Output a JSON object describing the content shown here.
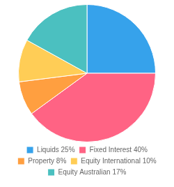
{
  "chart_data": {
    "type": "pie",
    "categories": [
      "Liquids 25%",
      "Fixed Interest 40%",
      "Property 8%",
      "Equity International 10%",
      "Equity Australian 17%"
    ],
    "values": [
      25,
      40,
      8,
      10,
      17
    ],
    "legend": "bottom"
  }
}
